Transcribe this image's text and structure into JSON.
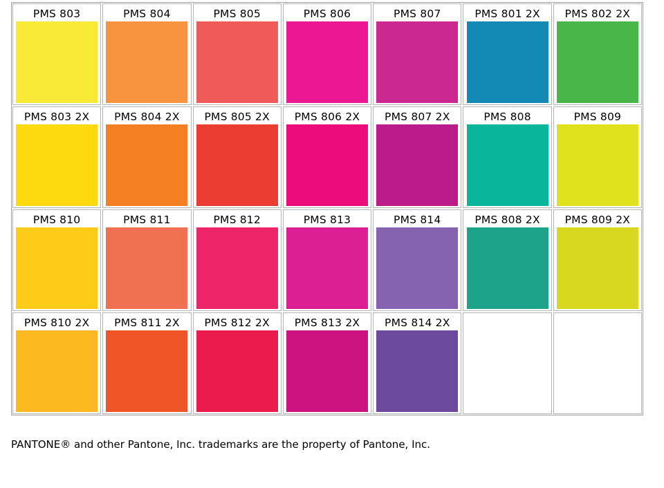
{
  "swatches": [
    {
      "label": "PMS 803",
      "color": "#f8ea36"
    },
    {
      "label": "PMS 804",
      "color": "#f89440"
    },
    {
      "label": "PMS 805",
      "color": "#f05a58"
    },
    {
      "label": "PMS 806",
      "color": "#ec1893"
    },
    {
      "label": "PMS 807",
      "color": "#cb2891"
    },
    {
      "label": "PMS 801 2X",
      "color": "#128ab5"
    },
    {
      "label": "PMS 802 2X",
      "color": "#48b648"
    },
    {
      "label": "PMS 803 2X",
      "color": "#fdda0f"
    },
    {
      "label": "PMS 804 2X",
      "color": "#f58024"
    },
    {
      "label": "PMS 805 2X",
      "color": "#ec3d33"
    },
    {
      "label": "PMS 806 2X",
      "color": "#ec0c7c"
    },
    {
      "label": "PMS 807 2X",
      "color": "#bc1c8b"
    },
    {
      "label": "PMS 808",
      "color": "#0ab69b"
    },
    {
      "label": "PMS 809",
      "color": "#dfe21c"
    },
    {
      "label": "PMS 810",
      "color": "#fdcb18"
    },
    {
      "label": "PMS 811",
      "color": "#f07151"
    },
    {
      "label": "PMS 812",
      "color": "#ee2568"
    },
    {
      "label": "PMS 813",
      "color": "#dc1f93"
    },
    {
      "label": "PMS 814",
      "color": "#8663b0"
    },
    {
      "label": "PMS 808 2X",
      "color": "#1ea38b"
    },
    {
      "label": "PMS 809 2X",
      "color": "#d8d821"
    },
    {
      "label": "PMS 810 2X",
      "color": "#fdba20"
    },
    {
      "label": "PMS 811 2X",
      "color": "#f05527"
    },
    {
      "label": "PMS 812 2X",
      "color": "#ec1b4e"
    },
    {
      "label": "PMS 813 2X",
      "color": "#cc137f"
    },
    {
      "label": "PMS 814 2X",
      "color": "#6c4a9d"
    },
    {
      "label": "",
      "color": ""
    },
    {
      "label": "",
      "color": ""
    }
  ],
  "footer": {
    "trademark_note": "PANTONE® and other Pantone, Inc. trademarks are the property of Pantone, Inc."
  }
}
